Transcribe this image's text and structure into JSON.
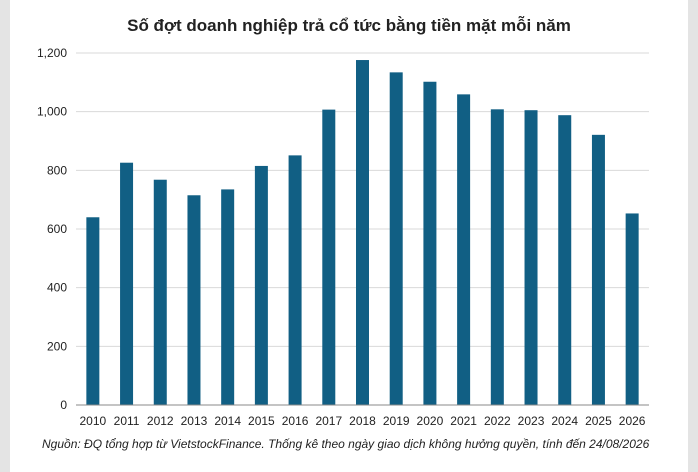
{
  "chart_data": {
    "type": "bar",
    "title": "Số đợt doanh nghiệp trả cổ tức bằng tiền mặt mỗi năm",
    "xlabel": "",
    "ylabel": "",
    "categories": [
      "2010",
      "2011",
      "2012",
      "2013",
      "2014",
      "2015",
      "2016",
      "2017",
      "2018",
      "2019",
      "2020",
      "2021",
      "2022",
      "2023",
      "2024",
      "2025",
      "2026"
    ],
    "values": [
      640,
      826,
      768,
      715,
      735,
      815,
      851,
      1007,
      1176,
      1134,
      1102,
      1059,
      1008,
      1005,
      988,
      921,
      653
    ],
    "ylim": [
      0,
      1200
    ],
    "yticks": [
      0,
      200,
      400,
      600,
      800,
      1000,
      1200
    ],
    "ytick_labels": [
      "0",
      "200",
      "400",
      "600",
      "800",
      "1,000",
      "1,200"
    ],
    "grid": true,
    "legend": "none",
    "bar_color": "#115f84",
    "grid_color": "#d9d9d9",
    "axis_color": "#888888"
  },
  "source_note": "Nguồn: ĐQ tổng hợp từ VietstockFinance. Thống kê theo ngày giao dịch không hưởng quyền, tính đến 24/08/2026"
}
